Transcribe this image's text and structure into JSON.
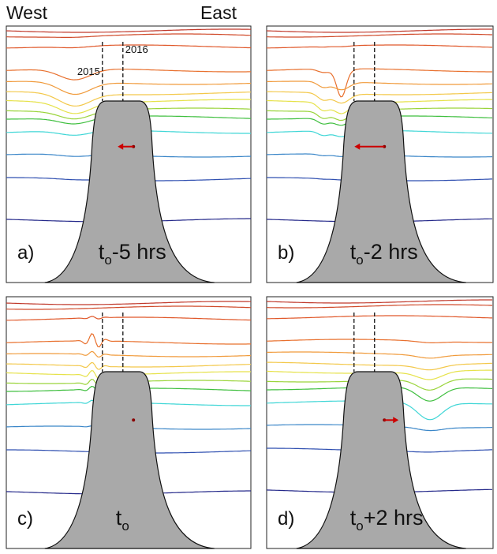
{
  "header": {
    "west": "West",
    "east": "East"
  },
  "panels": [
    {
      "letter": "a)",
      "base": "t",
      "sub": "o",
      "suffix": "-5 hrs",
      "markers": [
        "2015",
        "2016"
      ]
    },
    {
      "letter": "b)",
      "base": "t",
      "sub": "o",
      "suffix": "-2 hrs"
    },
    {
      "letter": "c)",
      "base": "t",
      "sub": "o"
    },
    {
      "letter": "d)",
      "base": "t",
      "sub": "o",
      "suffix": "+2 hrs"
    }
  ]
}
